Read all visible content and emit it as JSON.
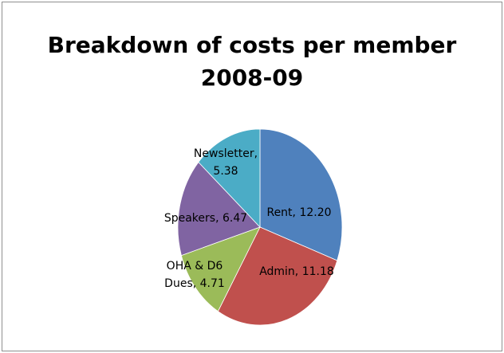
{
  "chart_data": {
    "type": "pie",
    "title_lines": [
      "Breakdown of costs per member",
      "2008-09"
    ],
    "slices": [
      {
        "name": "Rent",
        "value": 12.2,
        "color": "#4f81bd",
        "label_lines": [
          "Rent,  12.20"
        ]
      },
      {
        "name": "Admin",
        "value": 11.18,
        "color": "#c0504d",
        "label_lines": [
          "Admin, 11.18"
        ]
      },
      {
        "name": "OHA & D6 Dues",
        "value": 4.71,
        "color": "#9bbb59",
        "label_lines": [
          "OHA & D6",
          "Dues, 4.71"
        ]
      },
      {
        "name": "Speakers",
        "value": 6.47,
        "color": "#8064a2",
        "label_lines": [
          "Speakers, 6.47"
        ]
      },
      {
        "name": "Newsletter",
        "value": 5.38,
        "color": "#4bacc6",
        "label_lines": [
          "Newsletter,",
          "5.38"
        ]
      }
    ],
    "start_angle": "12 o'clock",
    "direction": "clockwise",
    "legend": "none",
    "data_labels": "inside"
  }
}
